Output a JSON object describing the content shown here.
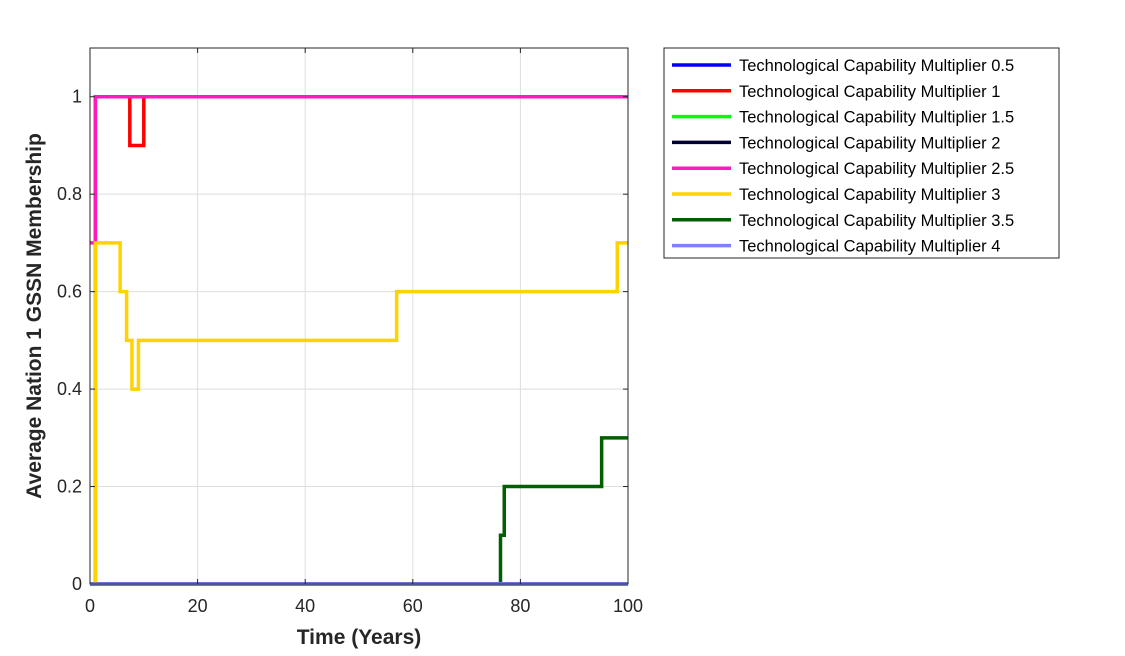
{
  "chart_data": {
    "type": "line",
    "title": "",
    "xlabel": "Time (Years)",
    "ylabel": "Average Nation 1 GSSN Membership",
    "xlim": [
      0,
      100
    ],
    "ylim": [
      0,
      1.1
    ],
    "xticks": [
      0,
      20,
      40,
      60,
      80,
      100
    ],
    "yticks": [
      0,
      0.2,
      0.4,
      0.6,
      0.8,
      1
    ],
    "xtick_labels": [
      "0",
      "20",
      "40",
      "60",
      "80",
      "100"
    ],
    "ytick_labels": [
      "0",
      "0.2",
      "0.4",
      "0.6",
      "0.8",
      "1"
    ],
    "grid": true,
    "legend_position": "outside right, top",
    "series": [
      {
        "name": "Technological Capability Multiplier 0.5",
        "color": "#0000ff",
        "x": [
          0,
          100
        ],
        "y": [
          0,
          0
        ]
      },
      {
        "name": "Technological Capability Multiplier 1",
        "color": "#ff0000",
        "x": [
          0,
          1,
          1,
          7.4,
          7.4,
          10,
          10,
          100
        ],
        "y": [
          0,
          0,
          1,
          1,
          0.9,
          0.9,
          1,
          1
        ]
      },
      {
        "name": "Technological Capability Multiplier 1.5",
        "color": "#00ff00",
        "x": [
          0,
          100
        ],
        "y": [
          0,
          0
        ]
      },
      {
        "name": "Technological Capability Multiplier 2",
        "color": "#000033",
        "x": [
          0,
          100
        ],
        "y": [
          0,
          0
        ]
      },
      {
        "name": "Technological Capability Multiplier 2.5",
        "color": "#ff1aba",
        "x": [
          0,
          1,
          1,
          100
        ],
        "y": [
          0.7,
          0.7,
          1,
          1
        ]
      },
      {
        "name": "Technological Capability Multiplier 3",
        "color": "#ffd300",
        "x": [
          1,
          1,
          5.6,
          5.6,
          6.8,
          6.8,
          7.8,
          7.8,
          8.1,
          8.1,
          9,
          9,
          57,
          57,
          98,
          98,
          100
        ],
        "y": [
          0,
          0.7,
          0.7,
          0.6,
          0.6,
          0.5,
          0.5,
          0.4,
          0.4,
          0.4,
          0.4,
          0.5,
          0.5,
          0.6,
          0.6,
          0.7,
          0.7
        ]
      },
      {
        "name": "Technological Capability Multiplier 3.5",
        "color": "#005f00",
        "x": [
          0,
          76.3,
          76.3,
          77,
          77,
          95.1,
          95.1,
          100
        ],
        "y": [
          0,
          0,
          0.1,
          0.1,
          0.2,
          0.2,
          0.3,
          0.3
        ]
      },
      {
        "name": "Technological Capability Multiplier 4",
        "color": "#8080ff",
        "x": [
          0,
          100
        ],
        "y": [
          0,
          0
        ]
      }
    ]
  }
}
